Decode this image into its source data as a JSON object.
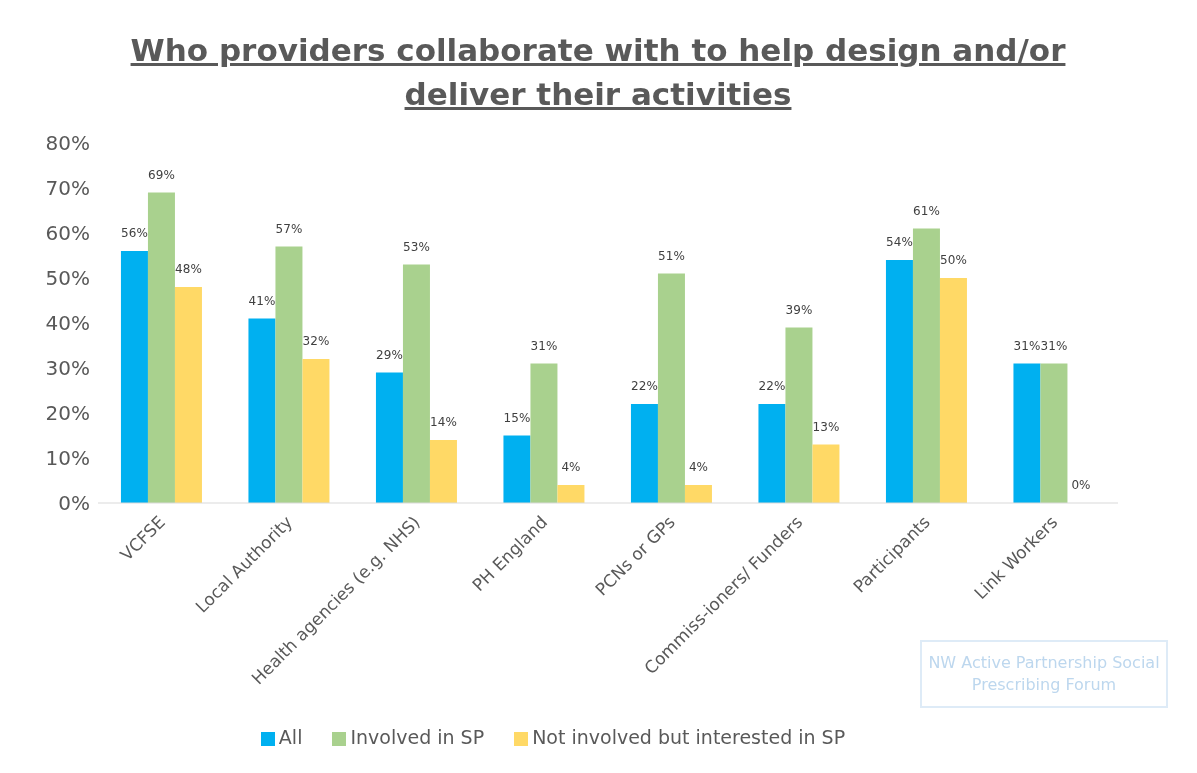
{
  "chart_data": {
    "type": "bar",
    "title": "Who providers collaborate with to help design and/or deliver their activities",
    "categories": [
      "VCFSE",
      "Local Authority",
      "Health agencies (e.g. NHS)",
      "PH England",
      "PCNs or GPs",
      "Commiss-ioners/ Funders",
      "Participants",
      "Link Workers"
    ],
    "series": [
      {
        "name": "All",
        "color": "#00b0f0",
        "values": [
          56,
          41,
          29,
          15,
          22,
          22,
          54,
          31
        ],
        "value_labels": [
          "56%",
          "41%",
          "29%",
          "15%",
          "22%",
          "22%",
          "54%",
          "31%"
        ]
      },
      {
        "name": "Involved in SP",
        "color": "#a9d18e",
        "values": [
          69,
          57,
          53,
          31,
          51,
          39,
          61,
          31
        ],
        "value_labels": [
          "69%",
          "57%",
          "53%",
          "31%",
          "51%",
          "39%",
          "61%",
          "31%"
        ]
      },
      {
        "name": "Not involved but interested in SP",
        "color": "#ffd966",
        "values": [
          48,
          32,
          14,
          4,
          4,
          13,
          50,
          0
        ],
        "value_labels": [
          "48%",
          "32%",
          "14%",
          "4%",
          "4%",
          "13%",
          "50%",
          "0%"
        ]
      }
    ],
    "ylim": [
      0,
      80
    ],
    "yticks": [
      {
        "value": 0,
        "label": "0%"
      },
      {
        "value": 10,
        "label": "10%"
      },
      {
        "value": 20,
        "label": "20%"
      },
      {
        "value": 30,
        "label": "30%"
      },
      {
        "value": 40,
        "label": "40%"
      },
      {
        "value": 50,
        "label": "50%"
      },
      {
        "value": 60,
        "label": "60%"
      },
      {
        "value": 70,
        "label": "70%"
      },
      {
        "value": 80,
        "label": "80%"
      }
    ],
    "grid": false,
    "legend": "bottom",
    "annotations": [
      "NW Active Partnership Social Prescribing Forum"
    ]
  }
}
